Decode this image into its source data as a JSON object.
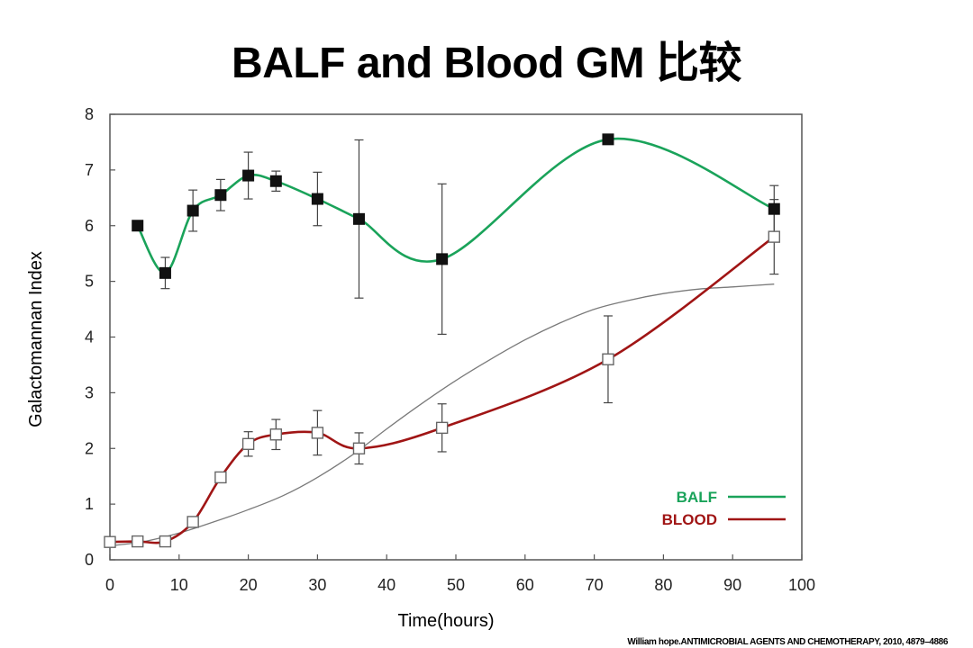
{
  "title": "BALF and Blood  GM 比较",
  "citation": "William hope.ANTIMICROBIAL AGENTS AND CHEMOTHERAPY, 2010, 4879–4886",
  "colors": {
    "balf": "#1aa35a",
    "blood": "#a01515",
    "reference": "#7a7a7a",
    "axis": "#555555"
  },
  "chart_data": {
    "type": "line",
    "xlabel": "Time(hours)",
    "ylabel": "Galactomannan Index",
    "xlim": [
      0,
      100
    ],
    "ylim": [
      0,
      8
    ],
    "xticks": [
      0,
      10,
      20,
      30,
      40,
      50,
      60,
      70,
      80,
      90,
      100
    ],
    "yticks": [
      0,
      1,
      2,
      3,
      4,
      5,
      6,
      7,
      8
    ],
    "grid": false,
    "legend_position": "bottom-right",
    "series": [
      {
        "name": "BALF",
        "marker": "filled-square",
        "x": [
          4,
          8,
          12,
          16,
          20,
          24,
          30,
          36,
          48,
          72,
          96
        ],
        "y": [
          6.0,
          5.15,
          6.27,
          6.55,
          6.9,
          6.8,
          6.48,
          6.12,
          5.4,
          7.55,
          6.3
        ],
        "err": [
          0,
          0.28,
          0.37,
          0.28,
          0.42,
          0.18,
          0.48,
          1.42,
          1.35,
          0,
          0.42
        ]
      },
      {
        "name": "BLOOD",
        "marker": "open-square",
        "x": [
          0,
          4,
          8,
          12,
          16,
          20,
          24,
          30,
          36,
          48,
          72,
          96
        ],
        "y": [
          0.32,
          0.33,
          0.33,
          0.68,
          1.48,
          2.08,
          2.25,
          2.28,
          2.0,
          2.37,
          3.6,
          5.8
        ],
        "err": [
          0,
          0,
          0,
          0,
          0,
          0.22,
          0.27,
          0.4,
          0.28,
          0.43,
          0.78,
          0.67
        ]
      }
    ],
    "reference_curve": {
      "x": [
        0,
        5,
        10,
        15,
        20,
        25,
        30,
        35,
        40,
        45,
        50,
        55,
        60,
        65,
        70,
        75,
        80,
        85,
        90,
        96
      ],
      "y": [
        0.25,
        0.33,
        0.48,
        0.68,
        0.9,
        1.15,
        1.48,
        1.88,
        2.35,
        2.8,
        3.22,
        3.6,
        3.95,
        4.25,
        4.5,
        4.66,
        4.78,
        4.86,
        4.9,
        4.95
      ]
    }
  }
}
